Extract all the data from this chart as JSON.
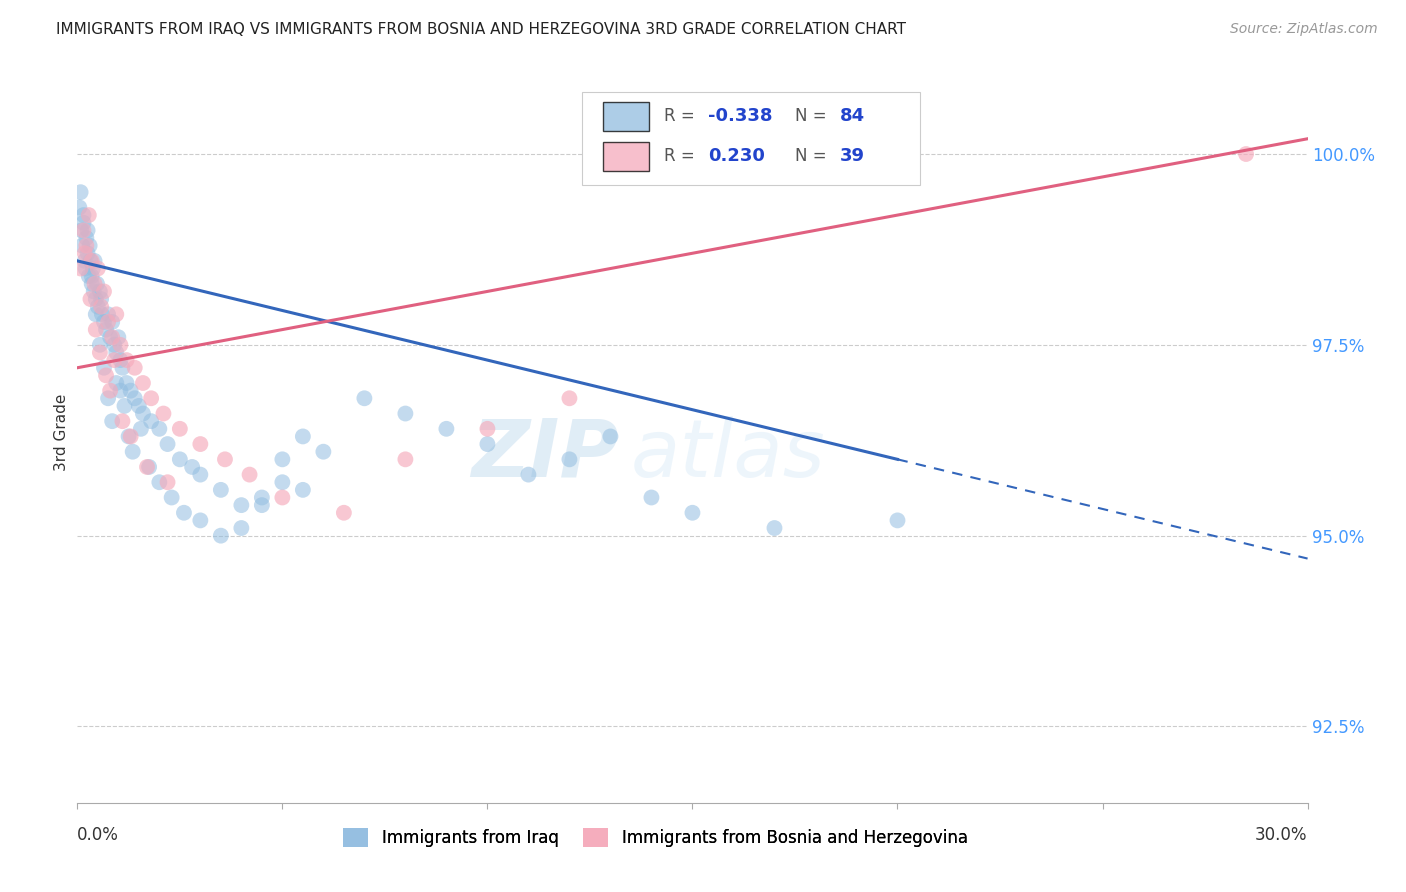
{
  "title": "IMMIGRANTS FROM IRAQ VS IMMIGRANTS FROM BOSNIA AND HERZEGOVINA 3RD GRADE CORRELATION CHART",
  "source": "Source: ZipAtlas.com",
  "ylabel": "3rd Grade",
  "ytick_labels": [
    "92.5%",
    "95.0%",
    "97.5%",
    "100.0%"
  ],
  "ytick_values": [
    92.5,
    95.0,
    97.5,
    100.0
  ],
  "xlim": [
    0.0,
    30.0
  ],
  "ylim": [
    91.5,
    101.2
  ],
  "iraq_color": "#92bde0",
  "bosnia_color": "#f5aabb",
  "iraq_line_color": "#3366bb",
  "bosnia_line_color": "#e06080",
  "watermark_zip": "ZIP",
  "watermark_atlas": "atlas",
  "iraq_line_x0": 0.0,
  "iraq_line_y0": 98.6,
  "iraq_line_x1": 30.0,
  "iraq_line_y1": 94.7,
  "iraq_solid_x_end": 20.0,
  "bosnia_line_x0": 0.0,
  "bosnia_line_y0": 97.2,
  "bosnia_line_x1": 30.0,
  "bosnia_line_y1": 100.2,
  "iraq_scatter_x": [
    0.05,
    0.08,
    0.1,
    0.12,
    0.15,
    0.18,
    0.2,
    0.22,
    0.25,
    0.28,
    0.3,
    0.32,
    0.35,
    0.38,
    0.4,
    0.42,
    0.45,
    0.48,
    0.5,
    0.55,
    0.58,
    0.6,
    0.65,
    0.7,
    0.75,
    0.8,
    0.85,
    0.9,
    0.95,
    1.0,
    1.05,
    1.1,
    1.2,
    1.3,
    1.4,
    1.5,
    1.6,
    1.8,
    2.0,
    2.2,
    2.5,
    2.8,
    3.0,
    3.5,
    4.0,
    4.5,
    5.0,
    5.5,
    6.0,
    7.0,
    8.0,
    9.0,
    10.0,
    11.0,
    12.0,
    13.0,
    14.0,
    15.0,
    17.0,
    20.0,
    0.15,
    0.25,
    0.35,
    0.45,
    0.55,
    0.65,
    0.75,
    0.85,
    0.95,
    1.05,
    1.15,
    1.25,
    1.35,
    1.55,
    1.75,
    2.0,
    2.3,
    2.6,
    3.0,
    3.5,
    4.0,
    4.5,
    5.0,
    5.5
  ],
  "iraq_scatter_y": [
    99.3,
    99.5,
    99.0,
    98.8,
    99.2,
    98.6,
    98.5,
    98.9,
    98.7,
    98.4,
    98.8,
    98.6,
    98.3,
    98.5,
    98.2,
    98.6,
    98.1,
    98.3,
    98.0,
    98.2,
    98.1,
    97.9,
    97.8,
    97.7,
    97.9,
    97.6,
    97.8,
    97.5,
    97.4,
    97.6,
    97.3,
    97.2,
    97.0,
    96.9,
    96.8,
    96.7,
    96.6,
    96.5,
    96.4,
    96.2,
    96.0,
    95.9,
    95.8,
    95.6,
    95.4,
    95.5,
    95.7,
    96.3,
    96.1,
    96.8,
    96.6,
    96.4,
    96.2,
    95.8,
    96.0,
    96.3,
    95.5,
    95.3,
    95.1,
    95.2,
    99.1,
    99.0,
    98.4,
    97.9,
    97.5,
    97.2,
    96.8,
    96.5,
    97.0,
    96.9,
    96.7,
    96.3,
    96.1,
    96.4,
    95.9,
    95.7,
    95.5,
    95.3,
    95.2,
    95.0,
    95.1,
    95.4,
    96.0,
    95.6
  ],
  "bosnia_scatter_x": [
    0.08,
    0.15,
    0.22,
    0.28,
    0.35,
    0.42,
    0.5,
    0.58,
    0.65,
    0.75,
    0.85,
    0.95,
    1.05,
    1.2,
    1.4,
    1.6,
    1.8,
    2.1,
    2.5,
    3.0,
    3.6,
    4.2,
    5.0,
    6.5,
    8.0,
    10.0,
    12.0,
    0.18,
    0.32,
    0.45,
    0.55,
    0.7,
    0.8,
    0.9,
    1.1,
    1.3,
    1.7,
    2.2,
    28.5
  ],
  "bosnia_scatter_y": [
    98.5,
    99.0,
    98.8,
    99.2,
    98.6,
    98.3,
    98.5,
    98.0,
    98.2,
    97.8,
    97.6,
    97.9,
    97.5,
    97.3,
    97.2,
    97.0,
    96.8,
    96.6,
    96.4,
    96.2,
    96.0,
    95.8,
    95.5,
    95.3,
    96.0,
    96.4,
    96.8,
    98.7,
    98.1,
    97.7,
    97.4,
    97.1,
    96.9,
    97.3,
    96.5,
    96.3,
    95.9,
    95.7,
    100.0
  ]
}
